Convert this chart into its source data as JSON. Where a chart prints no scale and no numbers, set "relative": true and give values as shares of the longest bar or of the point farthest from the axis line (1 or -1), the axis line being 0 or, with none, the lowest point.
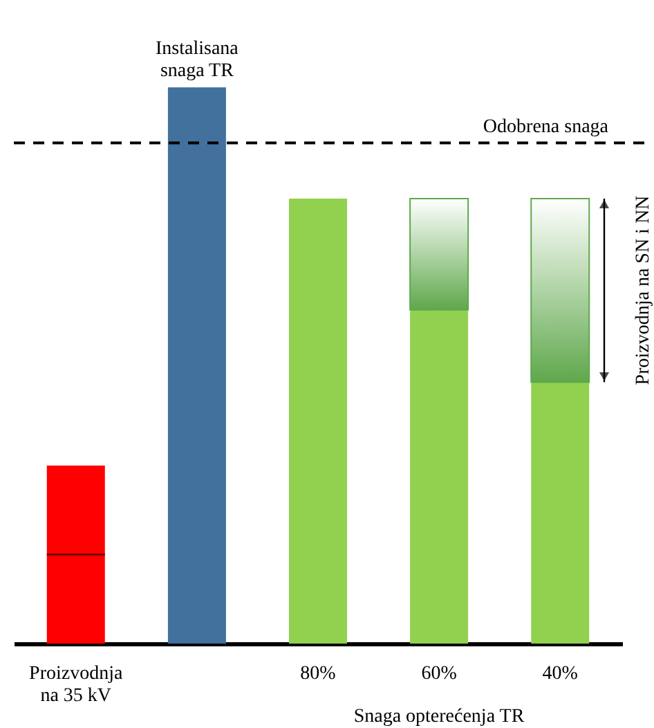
{
  "chart_data": {
    "type": "bar",
    "relative": true,
    "stacked": true,
    "categories": [
      "Proizvodnja\nna 35 kV",
      null,
      "80%",
      "60%",
      "40%"
    ],
    "xlabel": "Snaga opterećenja TR",
    "series": [
      {
        "colors": [
          "#ff0000",
          "#41719c",
          "#92d050",
          "#92d050",
          "#92d050"
        ],
        "values": [
          0.32,
          1,
          0.8,
          0.6,
          0.47
        ]
      },
      {
        "color": "#5fa84c",
        "values": [
          null,
          null,
          null,
          0.2,
          0.33
        ]
      }
    ],
    "ref_lines": [
      {
        "axis": "y",
        "value": 0.9,
        "label": "Odobrena snaga",
        "color": "#000000",
        "line_style": "dashed"
      },
      {
        "axis": "y",
        "value": 0.16,
        "color": "#000000",
        "line_style": "dotted"
      }
    ],
    "annotations": [
      "Instalisana\nsnaga TR",
      "Proizvodnja na SN i NN"
    ],
    "grid": false
  }
}
